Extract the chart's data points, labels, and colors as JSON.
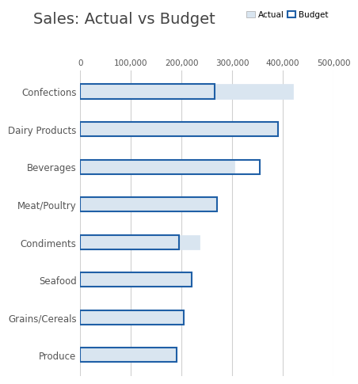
{
  "title": "Sales: Actual vs Budget",
  "categories": [
    "Confections",
    "Dairy Products",
    "Beverages",
    "Meat/Poultry",
    "Condiments",
    "Seafood",
    "Grains/Cereals",
    "Produce"
  ],
  "actual": [
    420000,
    390000,
    305000,
    270000,
    235000,
    220000,
    205000,
    190000
  ],
  "budget": [
    265000,
    390000,
    355000,
    270000,
    195000,
    220000,
    205000,
    190000
  ],
  "actual_color": "#d9e5f0",
  "actual_edgecolor": "#d9e5f0",
  "budget_edgecolor": "#1f5fa6",
  "budget_facecolor": "none",
  "xlim": [
    0,
    500000
  ],
  "xticks": [
    0,
    100000,
    200000,
    300000,
    400000,
    500000
  ],
  "xtick_labels": [
    "0",
    "100,000",
    "200,000",
    "300,000",
    "400,000",
    "500,000"
  ],
  "title_fontsize": 14,
  "tick_fontsize": 7.5,
  "label_fontsize": 8.5,
  "background_color": "#ffffff",
  "grid_color": "#d0d0d0",
  "bar_height": 0.38
}
